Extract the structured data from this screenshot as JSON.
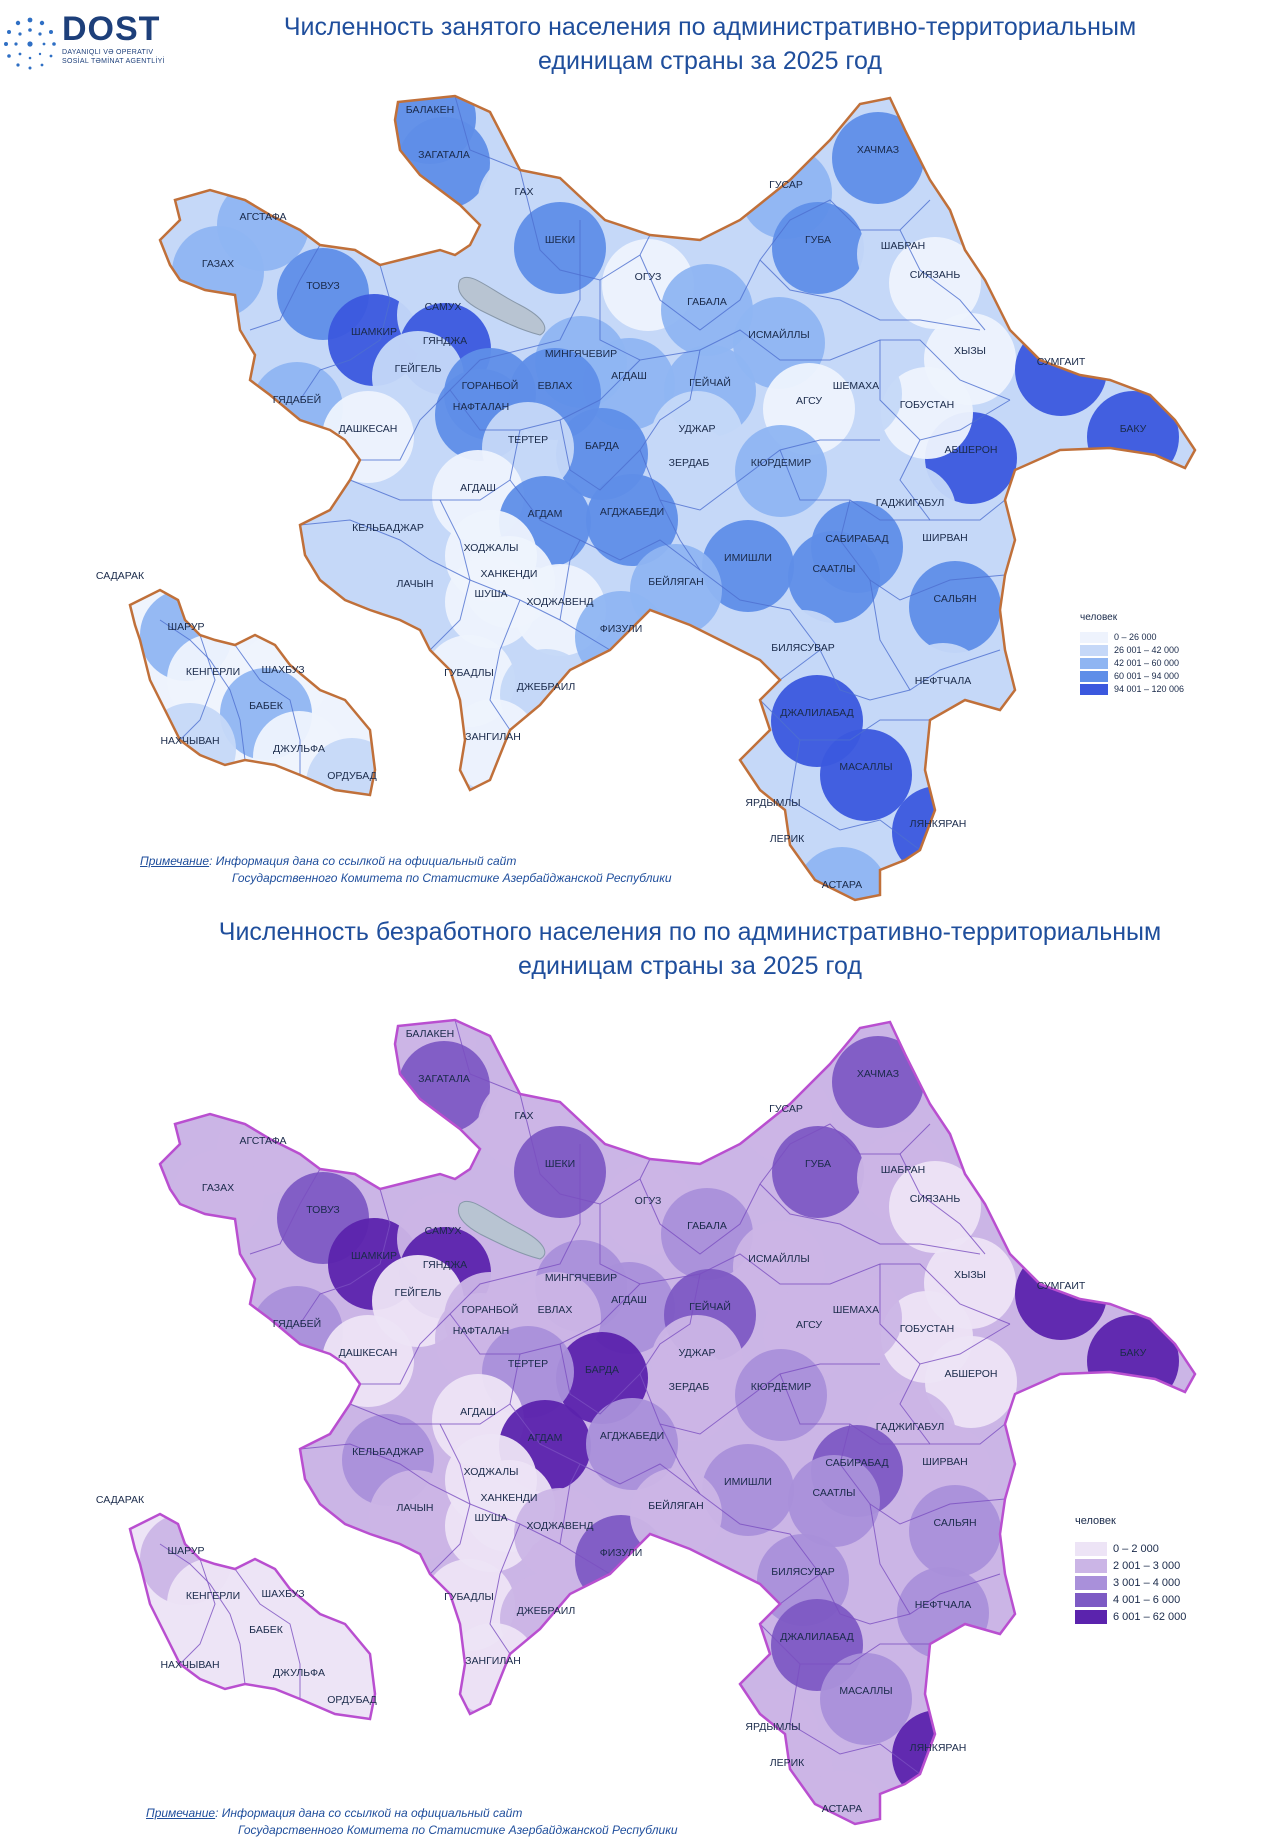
{
  "logo": {
    "name": "DOST",
    "subtitle_line1": "DAYANIQLI VƏ OPERATIV",
    "subtitle_line2": "SOSİAL TƏMİNAT AGENTLİYİ"
  },
  "map1": {
    "title_line1": "Численность занятого населения  по административно-территориальным",
    "title_line2": "единицам страны за 2025 год",
    "legend_title": "человек",
    "legend": [
      {
        "range": "0 – 26 000",
        "color": "#eef3fd"
      },
      {
        "range": "26 001 – 42 000",
        "color": "#c5d8f8"
      },
      {
        "range": "42 001 – 60 000",
        "color": "#8fb5f2"
      },
      {
        "range": "60 001 – 94 000",
        "color": "#5f8ee8"
      },
      {
        "range": "94 001 – 120 006",
        "color": "#3b58de"
      }
    ],
    "note_label": "Примечание",
    "note_line1": ": Информация дана со ссылкой на официальный сайт",
    "note_line2": "Государственного Комитета по Статистике Азербайджанской Республики"
  },
  "map2": {
    "title_line1": "Численность безработного населения  по по административно-территориальным",
    "title_line2": "единицам страны за 2025 год",
    "legend_title": "человек",
    "legend": [
      {
        "range": "0 – 2 000",
        "color": "#ede4f6"
      },
      {
        "range": "2 001 – 3 000",
        "color": "#cbb5e6"
      },
      {
        "range": "3 001 – 4 000",
        "color": "#a990da"
      },
      {
        "range": "4 001 – 6 000",
        "color": "#7d5ac4"
      },
      {
        "range": "6 001 – 62 000",
        "color": "#5b23ad"
      }
    ],
    "note_label": "Примечание",
    "note_line1": ": Информация дана со ссылкой на официальный сайт",
    "note_line2": "Государственного Комитета по Статистике Азербайджанской Республики"
  },
  "regions": [
    {
      "name": "БАЛАКЕН",
      "c1": 3,
      "c2": 1
    },
    {
      "name": "ЗАГАТАЛА",
      "c1": 3,
      "c2": 3
    },
    {
      "name": "ГАХ",
      "c1": 1,
      "c2": 1
    },
    {
      "name": "ШЕКИ",
      "c1": 3,
      "c2": 3
    },
    {
      "name": "ОГУЗ",
      "c1": 0,
      "c2": 1
    },
    {
      "name": "ГАБАЛА",
      "c1": 2,
      "c2": 2
    },
    {
      "name": "ИСМАЙЛЛЫ",
      "c1": 2,
      "c2": 1
    },
    {
      "name": "ГУСАР",
      "c1": 2,
      "c2": 1
    },
    {
      "name": "ХАЧМАЗ",
      "c1": 3,
      "c2": 3
    },
    {
      "name": "ГУБА",
      "c1": 3,
      "c2": 3
    },
    {
      "name": "ШАБРАН",
      "c1": 1,
      "c2": 1
    },
    {
      "name": "СИЯЗАНЬ",
      "c1": 0,
      "c2": 0
    },
    {
      "name": "ХЫЗЫ",
      "c1": 0,
      "c2": 0
    },
    {
      "name": "СУМГАИТ",
      "c1": 4,
      "c2": 4
    },
    {
      "name": "БАКУ",
      "c1": 4,
      "c2": 4
    },
    {
      "name": "АБШЕРОН",
      "c1": 4,
      "c2": 0
    },
    {
      "name": "ГОБУСТАН",
      "c1": 0,
      "c2": 0
    },
    {
      "name": "ШЕМАХА",
      "c1": 1,
      "c2": 1
    },
    {
      "name": "АГСУ",
      "c1": 0,
      "c2": 1
    },
    {
      "name": "АГДАШ",
      "c1": 2,
      "c2": 2
    },
    {
      "name": "ГЕЙЧАЙ",
      "c1": 2,
      "c2": 3
    },
    {
      "name": "УДЖАР",
      "c1": 1,
      "c2": 1
    },
    {
      "name": "ЗЕРДАБ",
      "c1": 1,
      "c2": 1
    },
    {
      "name": "КЮРДЕМИР",
      "c1": 2,
      "c2": 2
    },
    {
      "name": "ГАДЖИГАБУЛ",
      "c1": 1,
      "c2": 1
    },
    {
      "name": "ШИРВАН",
      "c1": 1,
      "c2": 1
    },
    {
      "name": "САБИРАБАД",
      "c1": 3,
      "c2": 3
    },
    {
      "name": "СААТЛЫ",
      "c1": 3,
      "c2": 2
    },
    {
      "name": "ИМИШЛИ",
      "c1": 3,
      "c2": 2
    },
    {
      "name": "САЛЬЯН",
      "c1": 3,
      "c2": 2
    },
    {
      "name": "НЕФТЧАЛА",
      "c1": 1,
      "c2": 2
    },
    {
      "name": "БИЛЯСУВАР",
      "c1": 1,
      "c2": 2
    },
    {
      "name": "ДЖАЛИЛАБАД",
      "c1": 4,
      "c2": 3
    },
    {
      "name": "МАСАЛЛЫ",
      "c1": 4,
      "c2": 2
    },
    {
      "name": "ЛЯНКЯРАН",
      "c1": 4,
      "c2": 4
    },
    {
      "name": "ЯРДЫМЛЫ",
      "c1": 1,
      "c2": 1
    },
    {
      "name": "ЛЕРИК",
      "c1": 1,
      "c2": 1
    },
    {
      "name": "АСТАРА",
      "c1": 2,
      "c2": 1
    },
    {
      "name": "АГСТАФА",
      "c1": 2,
      "c2": 1
    },
    {
      "name": "ГАЗАХ",
      "c1": 2,
      "c2": 1
    },
    {
      "name": "ТОВУЗ",
      "c1": 3,
      "c2": 3
    },
    {
      "name": "ШАМКИР",
      "c1": 4,
      "c2": 4
    },
    {
      "name": "САМУХ",
      "c1": 1,
      "c2": 1
    },
    {
      "name": "ГЯНДЖА",
      "c1": 4,
      "c2": 4
    },
    {
      "name": "ГЕЙГЕЛЬ",
      "c1": 1,
      "c2": 0
    },
    {
      "name": "ГЯДАБЕЙ",
      "c1": 2,
      "c2": 2
    },
    {
      "name": "ДАШКЕСАН",
      "c1": 0,
      "c2": 0
    },
    {
      "name": "ГОРАНБОЙ",
      "c1": 3,
      "c2": 1
    },
    {
      "name": "НАФТАЛАН",
      "c1": 3,
      "c2": 1
    },
    {
      "name": "МИНГЯЧЕВИР",
      "c1": 2,
      "c2": 2
    },
    {
      "name": "ЕВЛАХ",
      "c1": 3,
      "c2": 1
    },
    {
      "name": "БАРДА",
      "c1": 3,
      "c2": 4
    },
    {
      "name": "ТЕРТЕР",
      "c1": 1,
      "c2": 2
    },
    {
      "name": "АГДАШ",
      "c1": 0,
      "c2": 0
    },
    {
      "name": "АГДАМ",
      "c1": 3,
      "c2": 4
    },
    {
      "name": "АГДЖАБЕДИ",
      "c1": 3,
      "c2": 2
    },
    {
      "name": "КЕЛЬБАДЖАР",
      "c1": 1,
      "c2": 2
    },
    {
      "name": "ЛАЧЫН",
      "c1": 1,
      "c2": 1
    },
    {
      "name": "ХОДЖАЛЫ",
      "c1": 0,
      "c2": 0
    },
    {
      "name": "ХАНКЕНДИ",
      "c1": 0,
      "c2": 0
    },
    {
      "name": "ШУША",
      "c1": 0,
      "c2": 0
    },
    {
      "name": "ХОДЖАВЕНД",
      "c1": 0,
      "c2": 1
    },
    {
      "name": "ФИЗУЛИ",
      "c1": 2,
      "c2": 3
    },
    {
      "name": "БЕЙЛЯГАН",
      "c1": 2,
      "c2": 1
    },
    {
      "name": "ГУБАДЛЫ",
      "c1": 0,
      "c2": 0
    },
    {
      "name": "ДЖЕБРАИЛ",
      "c1": 1,
      "c2": 1
    },
    {
      "name": "ЗАНГИЛАН",
      "c1": 0,
      "c2": 0
    },
    {
      "name": "САДАРАК",
      "c1": 0,
      "c2": 0
    },
    {
      "name": "ШАРУР",
      "c1": 2,
      "c2": 1
    },
    {
      "name": "КЕНГЕРЛИ",
      "c1": 0,
      "c2": 0
    },
    {
      "name": "ШАХБУЗ",
      "c1": 0,
      "c2": 0
    },
    {
      "name": "БАБЕК",
      "c1": 2,
      "c2": 0
    },
    {
      "name": "НАХЧЫВАН",
      "c1": 1,
      "c2": 0
    },
    {
      "name": "ДЖУЛЬФА",
      "c1": 0,
      "c2": 0
    },
    {
      "name": "ОРДУБАД",
      "c1": 1,
      "c2": 0
    }
  ]
}
